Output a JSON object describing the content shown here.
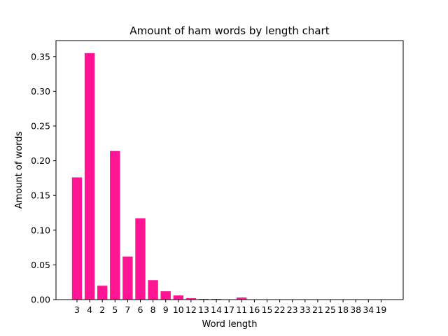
{
  "chart_data": {
    "type": "bar",
    "title": "Amount of ham words by length chart",
    "xlabel": "Word length",
    "ylabel": "Amount of words",
    "categories": [
      "3",
      "4",
      "2",
      "5",
      "7",
      "6",
      "8",
      "9",
      "10",
      "12",
      "13",
      "14",
      "17",
      "11",
      "16",
      "15",
      "22",
      "23",
      "33",
      "21",
      "25",
      "18",
      "38",
      "34",
      "19"
    ],
    "values": [
      0.176,
      0.355,
      0.02,
      0.214,
      0.062,
      0.117,
      0.028,
      0.012,
      0.006,
      0.002,
      0.001,
      0.001,
      0.0003,
      0.003,
      0.0002,
      0.0002,
      0.0001,
      0.0001,
      0.0001,
      0.0001,
      0.0001,
      0.0001,
      0.0001,
      0.0001,
      0.0001
    ],
    "yticks": [
      "0.00",
      "0.05",
      "0.10",
      "0.15",
      "0.20",
      "0.25",
      "0.30",
      "0.35"
    ],
    "ylim": [
      0,
      0.373
    ],
    "bar_color": "#ff1493",
    "grid": false,
    "legend": "none"
  }
}
